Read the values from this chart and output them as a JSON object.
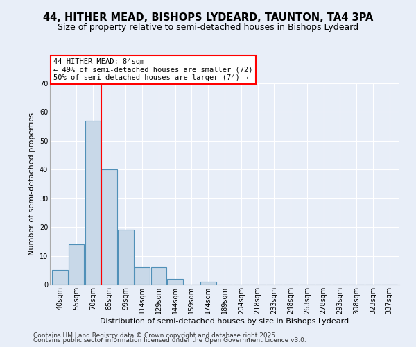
{
  "title": "44, HITHER MEAD, BISHOPS LYDEARD, TAUNTON, TA4 3PA",
  "subtitle": "Size of property relative to semi-detached houses in Bishops Lydeard",
  "xlabel": "Distribution of semi-detached houses by size in Bishops Lydeard",
  "ylabel": "Number of semi-detached properties",
  "bin_labels": [
    "40sqm",
    "55sqm",
    "70sqm",
    "85sqm",
    "99sqm",
    "114sqm",
    "129sqm",
    "144sqm",
    "159sqm",
    "174sqm",
    "189sqm",
    "204sqm",
    "218sqm",
    "233sqm",
    "248sqm",
    "263sqm",
    "278sqm",
    "293sqm",
    "308sqm",
    "323sqm",
    "337sqm"
  ],
  "bin_values": [
    5,
    14,
    57,
    40,
    19,
    6,
    6,
    2,
    0,
    1,
    0,
    0,
    0,
    0,
    0,
    0,
    0,
    0,
    0,
    0,
    0
  ],
  "bar_color": "#c8d8e8",
  "bar_edge_color": "#5090b8",
  "vline_pos": 2.5,
  "vline_color": "red",
  "annotation_line1": "44 HITHER MEAD: 84sqm",
  "annotation_line2": "← 49% of semi-detached houses are smaller (72)",
  "annotation_line3": "50% of semi-detached houses are larger (74) →",
  "ylim": [
    0,
    70
  ],
  "yticks": [
    0,
    10,
    20,
    30,
    40,
    50,
    60,
    70
  ],
  "bg_color": "#e8eef8",
  "plot_bg_color": "#e8eef8",
  "footer1": "Contains HM Land Registry data © Crown copyright and database right 2025.",
  "footer2": "Contains public sector information licensed under the Open Government Licence v3.0.",
  "title_fontsize": 10.5,
  "subtitle_fontsize": 9,
  "axis_label_fontsize": 8,
  "tick_fontsize": 7,
  "annotation_fontsize": 7.5,
  "footer_fontsize": 6.5
}
